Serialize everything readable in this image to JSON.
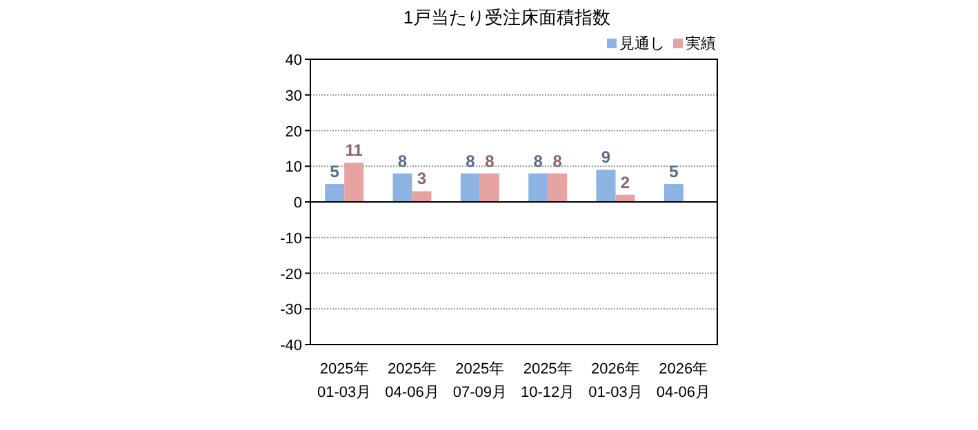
{
  "chart_data": {
    "type": "bar",
    "title": "1戸当たり受注床面積指数",
    "categories": [
      "2025年\n01-03月",
      "2025年\n04-06月",
      "2025年\n07-09月",
      "2025年\n10-12月",
      "2026年\n01-03月",
      "2026年\n04-06月"
    ],
    "series": [
      {
        "name": "見通し",
        "color": "#8db3e2",
        "values": [
          5,
          8,
          8,
          8,
          9,
          5
        ]
      },
      {
        "name": "実績",
        "color": "#e6a3a2",
        "values": [
          11,
          3,
          8,
          8,
          2,
          null
        ]
      }
    ],
    "ylim": [
      -40,
      40
    ],
    "yticks": [
      -40,
      -30,
      -20,
      -10,
      0,
      10,
      20,
      30,
      40
    ],
    "grid": "y",
    "legend": "top right",
    "data_labels": true
  }
}
